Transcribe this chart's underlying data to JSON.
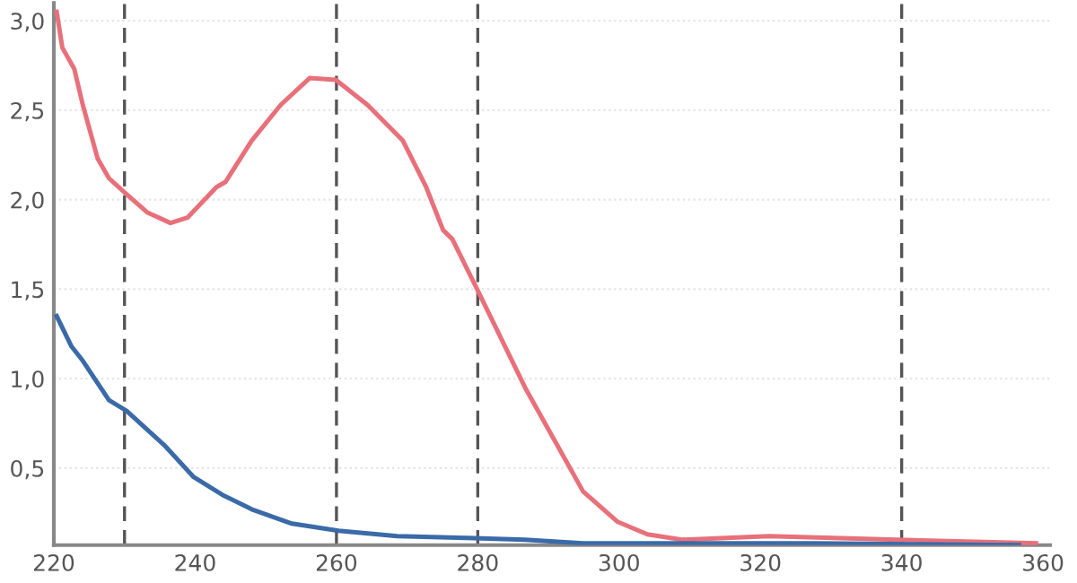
{
  "chart_data": {
    "type": "line",
    "series": [
      {
        "color": "#e8707a",
        "x": [
          220.4,
          221.2,
          222.9,
          224.1,
          226.2,
          227.8,
          230.3,
          233.2,
          236.5,
          238.9,
          243.0,
          244.3,
          248.0,
          252.1,
          256.2,
          259.9,
          264.4,
          269.4,
          272.7,
          275.1,
          276.4,
          279.9,
          286.7,
          294.9,
          299.8,
          304.0,
          308.9,
          321.2,
          339.3,
          359.0
        ],
        "values": [
          3.05,
          2.85,
          2.73,
          2.53,
          2.23,
          2.12,
          2.03,
          1.93,
          1.87,
          1.9,
          2.07,
          2.1,
          2.33,
          2.53,
          2.68,
          2.67,
          2.53,
          2.33,
          2.07,
          1.83,
          1.78,
          1.5,
          0.95,
          0.37,
          0.2,
          0.13,
          0.1,
          0.12,
          0.1,
          0.08
        ]
      },
      {
        "color": "#3a6aa8",
        "x": [
          220.4,
          222.5,
          224.1,
          227.8,
          230.3,
          235.6,
          239.8,
          243.9,
          248.0,
          253.7,
          260.3,
          268.6,
          278.4,
          286.7,
          294.9,
          327.8,
          356.6
        ],
        "values": [
          1.35,
          1.18,
          1.1,
          0.88,
          0.82,
          0.63,
          0.45,
          0.35,
          0.27,
          0.19,
          0.15,
          0.12,
          0.11,
          0.1,
          0.08,
          0.08,
          0.07
        ]
      }
    ],
    "xlim": [
      220,
      361
    ],
    "ylim": [
      0.07,
      3.1
    ],
    "xticks": [
      220,
      240,
      260,
      280,
      300,
      320,
      340,
      360
    ],
    "yticks": [
      {
        "value": 0.5,
        "label": "0,5"
      },
      {
        "value": 1.0,
        "label": "1,0"
      },
      {
        "value": 1.5,
        "label": "1,5"
      },
      {
        "value": 2.0,
        "label": "2,0"
      },
      {
        "value": 2.5,
        "label": "2,5"
      },
      {
        "value": 3.0,
        "label": "3,0"
      }
    ],
    "grid": "y",
    "marker": "none",
    "line_style": "solid",
    "ref_lines": [
      {
        "axis": "x",
        "value": 230,
        "color": "#555555",
        "line_style": "dashed"
      },
      {
        "axis": "x",
        "value": 260,
        "color": "#555555",
        "line_style": "dashed"
      },
      {
        "axis": "x",
        "value": 280,
        "color": "#555555",
        "line_style": "dashed"
      },
      {
        "axis": "x",
        "value": 340,
        "color": "#555555",
        "line_style": "dashed"
      }
    ]
  }
}
